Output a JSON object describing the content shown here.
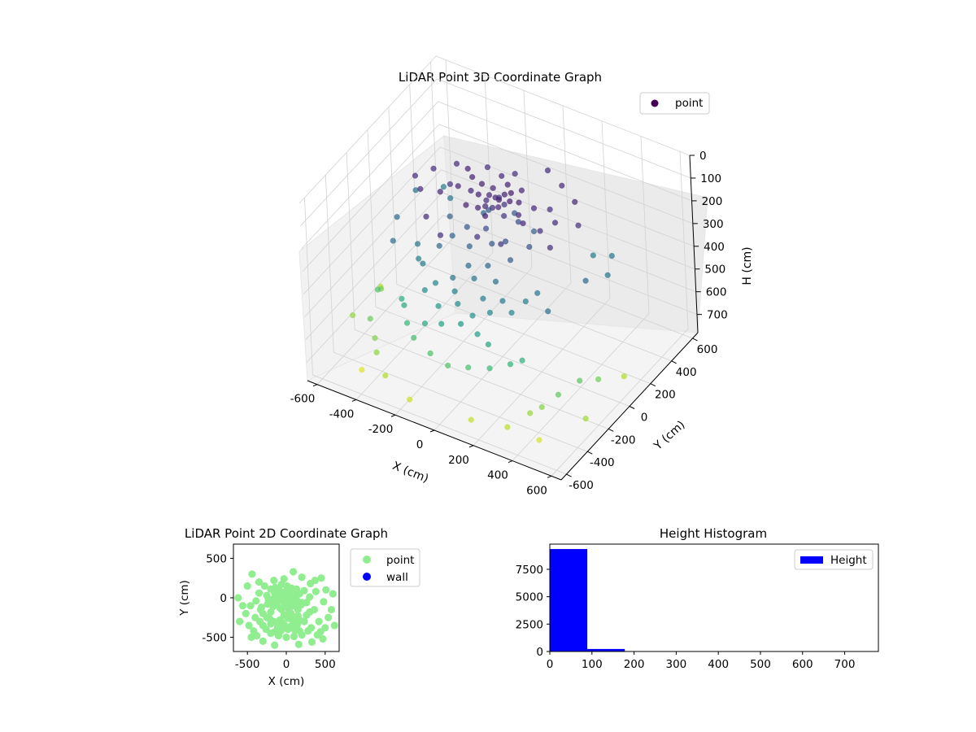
{
  "chart_data": [
    {
      "type": "scatter3d",
      "title": "LiDAR Point 3D Coordinate Graph",
      "xlabel": "X (cm)",
      "ylabel": "Y (cm)",
      "zlabel": "H (cm)",
      "xlim": [
        -650,
        650
      ],
      "ylim": [
        -650,
        650
      ],
      "zlim": [
        780,
        0
      ],
      "x_ticks": [
        "-600",
        "-400",
        "-200",
        "0",
        "200",
        "400",
        "600"
      ],
      "y_ticks": [
        "-600",
        "-400",
        "-200",
        "0",
        "200",
        "400",
        "600"
      ],
      "z_ticks": [
        "0",
        "100",
        "200",
        "300",
        "400",
        "500",
        "600",
        "700"
      ],
      "z_inverted": true,
      "grid": true,
      "colormap": "viridis",
      "legend": {
        "entries": [
          {
            "label": "point",
            "color": "#440154"
          }
        ],
        "placement": "upper-right"
      },
      "series": [
        {
          "name": "point",
          "cluster_note_points": [
            [
              0,
              0,
              80
            ],
            [
              30,
              -20,
              70
            ],
            [
              -40,
              15,
              90
            ],
            [
              60,
              40,
              60
            ],
            [
              -70,
              -30,
              75
            ],
            [
              20,
              50,
              85
            ],
            [
              -20,
              -60,
              95
            ],
            [
              80,
              -10,
              65
            ],
            [
              -90,
              40,
              70
            ],
            [
              45,
              -55,
              80
            ],
            [
              -50,
              70,
              90
            ],
            [
              110,
              20,
              75
            ],
            [
              -120,
              -10,
              85
            ],
            [
              10,
              100,
              70
            ],
            [
              -30,
              -110,
              80
            ],
            [
              140,
              -40,
              90
            ],
            [
              -150,
              60,
              70
            ],
            [
              70,
              120,
              85
            ],
            [
              -80,
              -130,
              75
            ],
            [
              170,
              50,
              95
            ],
            [
              -180,
              -20,
              80
            ],
            [
              35,
              -160,
              70
            ],
            [
              -60,
              170,
              90
            ],
            [
              190,
              -90,
              85
            ],
            [
              -200,
              110,
              75
            ],
            [
              0,
              -30,
              110
            ],
            [
              25,
              35,
              120
            ],
            [
              -45,
              -5,
              105
            ],
            [
              55,
              -25,
              130
            ],
            [
              -15,
              60,
              115
            ],
            [
              -250,
              30,
              120
            ],
            [
              260,
              -60,
              110
            ],
            [
              -240,
              -80,
              95
            ],
            [
              230,
              90,
              100
            ],
            [
              -30,
              240,
              105
            ],
            [
              40,
              -250,
              115
            ],
            [
              -280,
              150,
              100
            ],
            [
              300,
              10,
              95
            ],
            [
              150,
              -230,
              120
            ],
            [
              -160,
              220,
              110
            ],
            [
              -320,
              -120,
              90
            ],
            [
              310,
              180,
              85
            ],
            [
              -350,
              60,
              100
            ],
            [
              360,
              -150,
              105
            ],
            [
              90,
              330,
              95
            ],
            [
              -100,
              -340,
              110
            ],
            [
              200,
              260,
              90
            ],
            [
              -210,
              -270,
              100
            ],
            [
              380,
              80,
              115
            ],
            [
              -390,
              -40,
              95
            ],
            [
              -10,
              -80,
              180
            ],
            [
              40,
              -120,
              210
            ],
            [
              -60,
              -150,
              240
            ],
            [
              100,
              -100,
              190
            ],
            [
              -120,
              -60,
              220
            ],
            [
              60,
              -200,
              260
            ],
            [
              -30,
              -220,
              280
            ],
            [
              150,
              -150,
              230
            ],
            [
              -170,
              -110,
              250
            ],
            [
              20,
              -260,
              300
            ],
            [
              -80,
              -280,
              320
            ],
            [
              120,
              -240,
              290
            ],
            [
              -200,
              -180,
              270
            ],
            [
              200,
              -60,
              200
            ],
            [
              -230,
              -20,
              230
            ],
            [
              80,
              60,
              190
            ],
            [
              -90,
              90,
              210
            ],
            [
              130,
              110,
              240
            ],
            [
              -140,
              130,
              260
            ],
            [
              10,
              150,
              220
            ],
            [
              -50,
              -320,
              350
            ],
            [
              90,
              -310,
              340
            ],
            [
              -160,
              -300,
              360
            ],
            [
              180,
              -290,
              330
            ],
            [
              -20,
              -350,
              380
            ],
            [
              60,
              -360,
              400
            ],
            [
              -110,
              -370,
              410
            ],
            [
              140,
              -340,
              370
            ],
            [
              -200,
              -330,
              390
            ],
            [
              230,
              -300,
              360
            ],
            [
              -250,
              -250,
              330
            ],
            [
              260,
              -220,
              340
            ],
            [
              -300,
              -200,
              350
            ],
            [
              300,
              -180,
              310
            ],
            [
              -330,
              -150,
              320
            ],
            [
              20,
              -400,
              430
            ],
            [
              -70,
              -420,
              450
            ],
            [
              110,
              -410,
              440
            ],
            [
              -150,
              -430,
              470
            ],
            [
              170,
              -420,
              460
            ],
            [
              -350,
              200,
              300
            ],
            [
              370,
              220,
              320
            ],
            [
              -400,
              -250,
              280
            ],
            [
              420,
              -300,
              290
            ],
            [
              -440,
              300,
              330
            ],
            [
              450,
              250,
              310
            ],
            [
              -460,
              -100,
              270
            ],
            [
              480,
              -50,
              260
            ],
            [
              -500,
              150,
              290
            ],
            [
              510,
              100,
              300
            ],
            [
              -300,
              -350,
              480
            ],
            [
              320,
              -380,
              500
            ],
            [
              -260,
              -400,
              520
            ],
            [
              280,
              -420,
              510
            ],
            [
              -200,
              -450,
              540
            ],
            [
              200,
              -470,
              530
            ],
            [
              -100,
              -480,
              560
            ],
            [
              100,
              -490,
              550
            ],
            [
              0,
              -500,
              570
            ],
            [
              -340,
              -300,
              490
            ],
            [
              -520,
              -200,
              560
            ],
            [
              540,
              -250,
              580
            ],
            [
              -480,
              -350,
              600
            ],
            [
              500,
              -380,
              590
            ],
            [
              -560,
              -100,
              620
            ],
            [
              580,
              -150,
              610
            ],
            [
              -420,
              -420,
              630
            ],
            [
              440,
              -430,
              640
            ],
            [
              -380,
              -480,
              650
            ],
            [
              400,
              -470,
              660
            ],
            [
              -600,
              -300,
              650
            ],
            [
              620,
              -350,
              670
            ],
            [
              -300,
              -550,
              690
            ],
            [
              330,
              -560,
              700
            ],
            [
              -150,
              -600,
              720
            ],
            [
              160,
              -590,
              710
            ],
            [
              -620,
              0,
              680
            ],
            [
              600,
              50,
              690
            ],
            [
              -450,
              -500,
              740
            ],
            [
              470,
              -520,
              730
            ]
          ]
        }
      ],
      "color_by": "H (cm)"
    },
    {
      "type": "scatter",
      "title": "LiDAR Point 2D Coordinate Graph",
      "xlabel": "X (cm)",
      "ylabel": "Y (cm)",
      "xlim": [
        -680,
        680
      ],
      "ylim": [
        -680,
        680
      ],
      "x_ticks": [
        "-500",
        "0",
        "500"
      ],
      "y_ticks": [
        "-500",
        "0",
        "500"
      ],
      "grid": false,
      "legend": {
        "entries": [
          {
            "label": "point",
            "color": "#90ee90"
          },
          {
            "label": "wall",
            "color": "#0000ff"
          }
        ],
        "placement": "outside-right"
      },
      "series": [
        {
          "name": "point",
          "color": "#90ee90",
          "points": "same x/y as 3D series"
        },
        {
          "name": "wall",
          "color": "#0000ff",
          "points": []
        }
      ]
    },
    {
      "type": "bar",
      "title": "Height Histogram",
      "xlabel": "",
      "ylabel": "",
      "xlim": [
        0,
        780
      ],
      "ylim": [
        0,
        9800
      ],
      "x_ticks": [
        "0",
        "100",
        "200",
        "300",
        "400",
        "500",
        "600",
        "700"
      ],
      "y_ticks": [
        "0",
        "2500",
        "5000",
        "7500"
      ],
      "grid": false,
      "legend": {
        "entries": [
          {
            "label": "Height",
            "color": "#0000ff"
          }
        ],
        "placement": "upper-right"
      },
      "bins": [
        0,
        89,
        178,
        267,
        356,
        445,
        534,
        623,
        712,
        780
      ],
      "counts": [
        9350,
        230,
        20,
        12,
        8,
        6,
        5,
        4,
        3
      ],
      "bar_color": "#0000ff"
    }
  ]
}
